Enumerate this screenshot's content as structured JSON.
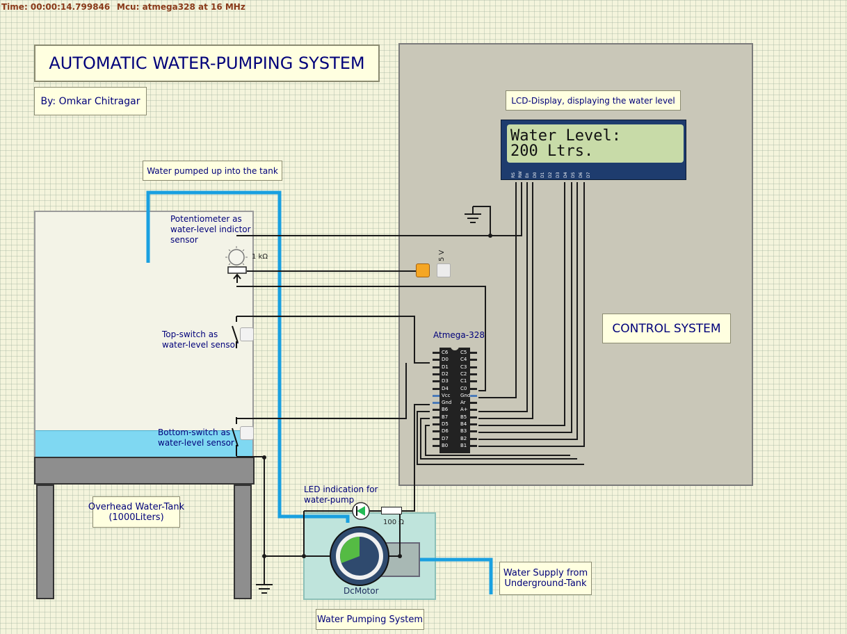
{
  "status": {
    "time": "Time: 00:00:14.799846",
    "mcu": "Mcu: atmega328 at 16 MHz"
  },
  "title": "AUTOMATIC WATER-PUMPING SYSTEM",
  "author": "By: Omkar Chitragar",
  "labels": {
    "lcd_caption": "LCD-Display, displaying the water level",
    "pumped_caption": "Water pumped up into the tank",
    "pot_caption": [
      "Potentiometer as",
      "water-level indictor",
      "sensor"
    ],
    "pot_value": "1 kΩ",
    "supply_5v": "5 V",
    "mcu_name": "Atmega-328",
    "control_system": "CONTROL SYSTEM",
    "top_switch": [
      "Top-switch as",
      "water-level sensor"
    ],
    "bottom_switch": [
      "Bottom-switch as",
      "water-level sensor"
    ],
    "led_caption": [
      "LED indication for",
      "water-pump"
    ],
    "resistor_value": "100 Ω",
    "motor": "DcMotor",
    "tank": [
      "Overhead Water-Tank",
      "(1000Liters)"
    ],
    "supply": [
      "Water Supply from",
      "Underground-Tank"
    ],
    "pump_system": "Water Pumping System"
  },
  "lcd": {
    "line1": "Water Level:",
    "line2": "200 Ltrs.",
    "pins": [
      "RS",
      "RW",
      "En",
      "D0",
      "D1",
      "D2",
      "D3",
      "D4",
      "D5",
      "D6",
      "D7"
    ]
  },
  "chip": {
    "left_pins": [
      "C6",
      "D0",
      "D1",
      "D2",
      "D3",
      "D4",
      "Vcc",
      "Gnd",
      "B6",
      "B7",
      "D5",
      "D6",
      "D7",
      "B0"
    ],
    "right_pins": [
      "C5",
      "C4",
      "C3",
      "C2",
      "C1",
      "C0",
      "Gnd",
      "Ar",
      "A+",
      "B5",
      "B4",
      "B3",
      "B2",
      "B1"
    ]
  },
  "colors": {
    "water_pipe": "#1aa0e0",
    "water": "#7fd8f2",
    "panel": "#c9c7b8",
    "led_diode": "#22bb55",
    "source": "#f5a623",
    "motor_fill": "#55bb44"
  },
  "water_fraction": 0.2
}
